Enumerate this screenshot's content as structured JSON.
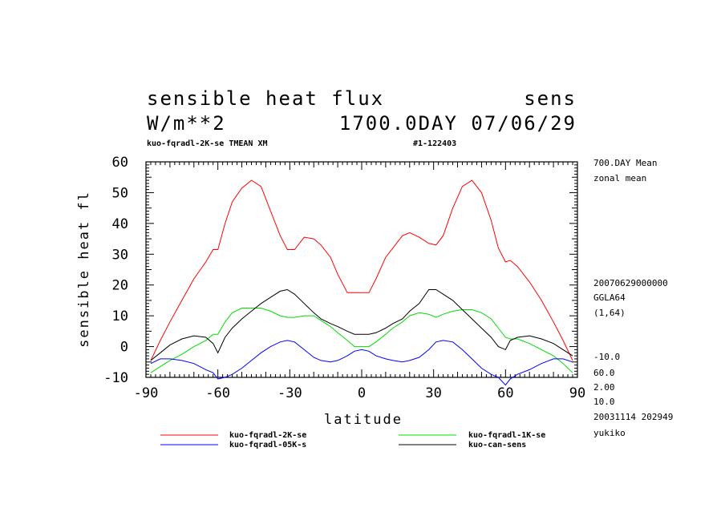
{
  "header": {
    "title_left": "sensible heat flux",
    "title_right": "sens",
    "units": "W/m**2",
    "time": "1700.0DAY 07/06/29",
    "subtitle_left": "kuo-fqradl-2K-se TMEAN XM",
    "subtitle_right": "#1-122403"
  },
  "side_info": {
    "lines_top": [
      "700.DAY Mean",
      "zonal mean"
    ],
    "lines_mid": [
      "20070629000000",
      "GGLA64",
      "(1,64)"
    ],
    "lines_bottom": [
      "-10.0",
      "60.0",
      "2.00",
      "10.0",
      "20031114 202949",
      "yukiko"
    ]
  },
  "chart_data": {
    "type": "line",
    "xlabel": "latitude",
    "ylabel": "sensible heat fl",
    "xlim": [
      -90,
      90
    ],
    "ylim": [
      -10,
      60
    ],
    "xticks": [
      -90,
      -60,
      -30,
      0,
      30,
      60,
      90
    ],
    "yticks": [
      -10,
      0,
      10,
      20,
      30,
      40,
      50,
      60
    ],
    "x": [
      -88,
      -84,
      -80,
      -75,
      -70,
      -65,
      -62,
      -60,
      -57,
      -54,
      -50,
      -46,
      -42,
      -38,
      -34,
      -31,
      -28,
      -24,
      -20,
      -17,
      -13,
      -10,
      -6,
      -3,
      0,
      3,
      6,
      10,
      13,
      17,
      20,
      24,
      28,
      31,
      34,
      38,
      42,
      46,
      50,
      54,
      57,
      60,
      62,
      65,
      70,
      75,
      80,
      84,
      88
    ],
    "series": [
      {
        "name": "kuo-fqradl-2K-se",
        "color": "#ff0000",
        "values": [
          -4.5,
          2,
          8,
          15,
          22,
          27.5,
          31.5,
          31.5,
          40,
          47,
          51.5,
          54,
          52,
          44,
          36,
          31.5,
          31.5,
          35.5,
          35,
          33,
          29,
          23.5,
          17.5,
          17.5,
          17.5,
          17.5,
          22,
          29,
          32,
          36,
          37,
          35.5,
          33.5,
          33,
          36,
          45,
          52,
          54,
          50,
          41,
          32,
          27.5,
          28,
          26,
          21,
          15,
          8,
          2,
          -4.5
        ]
      },
      {
        "name": "kuo-fqradl-1K-se",
        "color": "#00dd00",
        "values": [
          -8.5,
          -6.5,
          -4.5,
          -2.5,
          0,
          2,
          4,
          4,
          8,
          11,
          12.5,
          12.5,
          12.5,
          11.5,
          10,
          9.5,
          9.5,
          10,
          10,
          8.5,
          6.5,
          4.5,
          2,
          0,
          0,
          0,
          1.5,
          4,
          6,
          8,
          10,
          11,
          10.5,
          9.5,
          10.5,
          11.5,
          12,
          12,
          11,
          9,
          6,
          3,
          2.5,
          2.5,
          1,
          -1,
          -3,
          -5.5,
          -8.5
        ]
      },
      {
        "name": "kuo-fqradl-05K-s",
        "color": "#0000ff",
        "values": [
          -5.5,
          -4,
          -4,
          -4.5,
          -5.5,
          -7.5,
          -8.5,
          -10.5,
          -10,
          -9,
          -7,
          -4.5,
          -2,
          0,
          1.5,
          2,
          1.5,
          -1,
          -3.5,
          -4.5,
          -5,
          -4.5,
          -3,
          -1.5,
          -1,
          -1.5,
          -3,
          -4,
          -4.5,
          -5,
          -4.5,
          -3.5,
          -1,
          1.5,
          2,
          1.5,
          -1,
          -4,
          -7,
          -9,
          -10,
          -12.5,
          -10.5,
          -9,
          -7.5,
          -5.5,
          -4,
          -4,
          -5
        ]
      },
      {
        "name": "kuo-can-sens",
        "color": "#000000",
        "values": [
          -4.5,
          -2,
          0.5,
          2.5,
          3.5,
          3,
          1,
          -2,
          3,
          6,
          9,
          11.5,
          14,
          16,
          18,
          18.5,
          17,
          14,
          11,
          9,
          7.5,
          6.5,
          5,
          4,
          4,
          4,
          4.5,
          6,
          7.5,
          9,
          11.5,
          14,
          18.5,
          18.5,
          17,
          15,
          12,
          9,
          6,
          3,
          0,
          -1,
          2,
          3,
          3.5,
          2.5,
          1,
          -1,
          -3
        ]
      }
    ],
    "legend_position": "bottom"
  }
}
